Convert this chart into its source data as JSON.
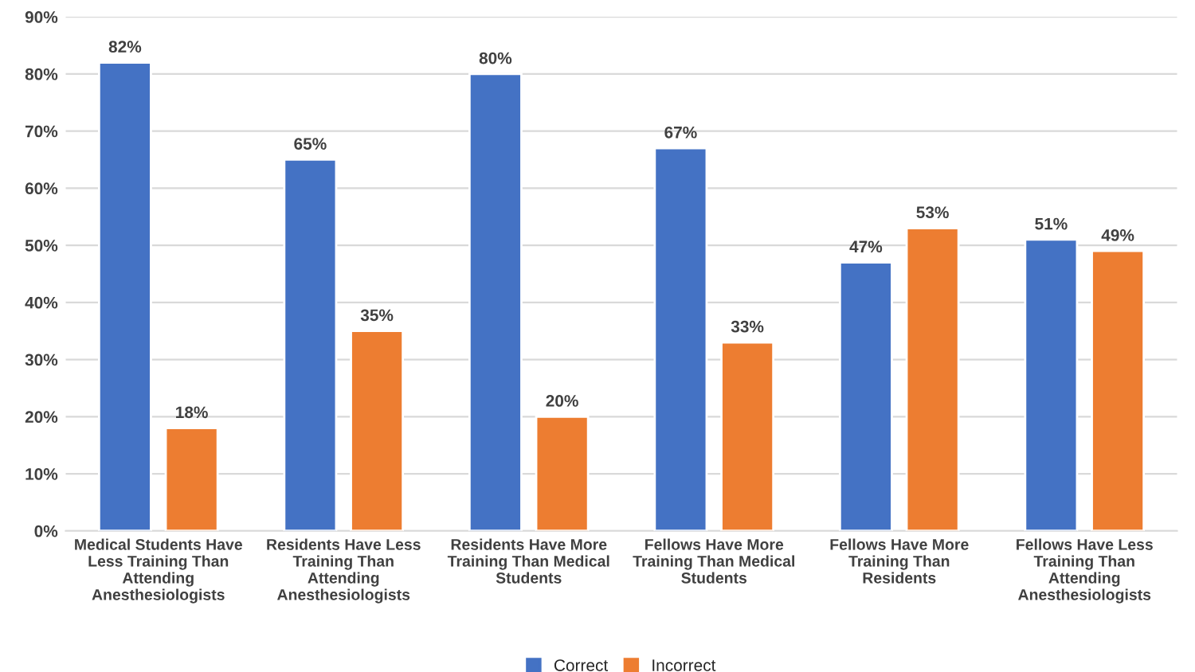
{
  "chart_data": {
    "type": "bar",
    "categories": [
      "Medical Students Have Less Training Than Attending Anesthesiologists",
      "Residents Have Less Training Than Attending Anesthesiologists",
      "Residents Have More Training Than Medical Students",
      "Fellows Have More Training Than Medical Students",
      "Fellows Have More Training Than Residents",
      "Fellows Have Less Training Than Attending Anesthesiologists"
    ],
    "series": [
      {
        "name": "Correct",
        "color": "#4472c4",
        "values": [
          82,
          65,
          80,
          67,
          47,
          51
        ],
        "value_labels": [
          "82%",
          "65%",
          "80%",
          "67%",
          "47%",
          "51%"
        ]
      },
      {
        "name": "Incorrect",
        "color": "#ed7d31",
        "values": [
          18,
          35,
          20,
          33,
          53,
          49
        ],
        "value_labels": [
          "18%",
          "35%",
          "20%",
          "33%",
          "53%",
          "49%"
        ]
      }
    ],
    "ylim": [
      0,
      90
    ],
    "yticks": [
      {
        "value": 0,
        "label": "0%"
      },
      {
        "value": 10,
        "label": "10%"
      },
      {
        "value": 20,
        "label": "20%"
      },
      {
        "value": 30,
        "label": "30%"
      },
      {
        "value": 40,
        "label": "40%"
      },
      {
        "value": 50,
        "label": "50%"
      },
      {
        "value": 60,
        "label": "60%"
      },
      {
        "value": 70,
        "label": "70%"
      },
      {
        "value": 80,
        "label": "80%"
      },
      {
        "value": 90,
        "label": "90%"
      }
    ],
    "grid": "y",
    "legend": "bottom"
  }
}
